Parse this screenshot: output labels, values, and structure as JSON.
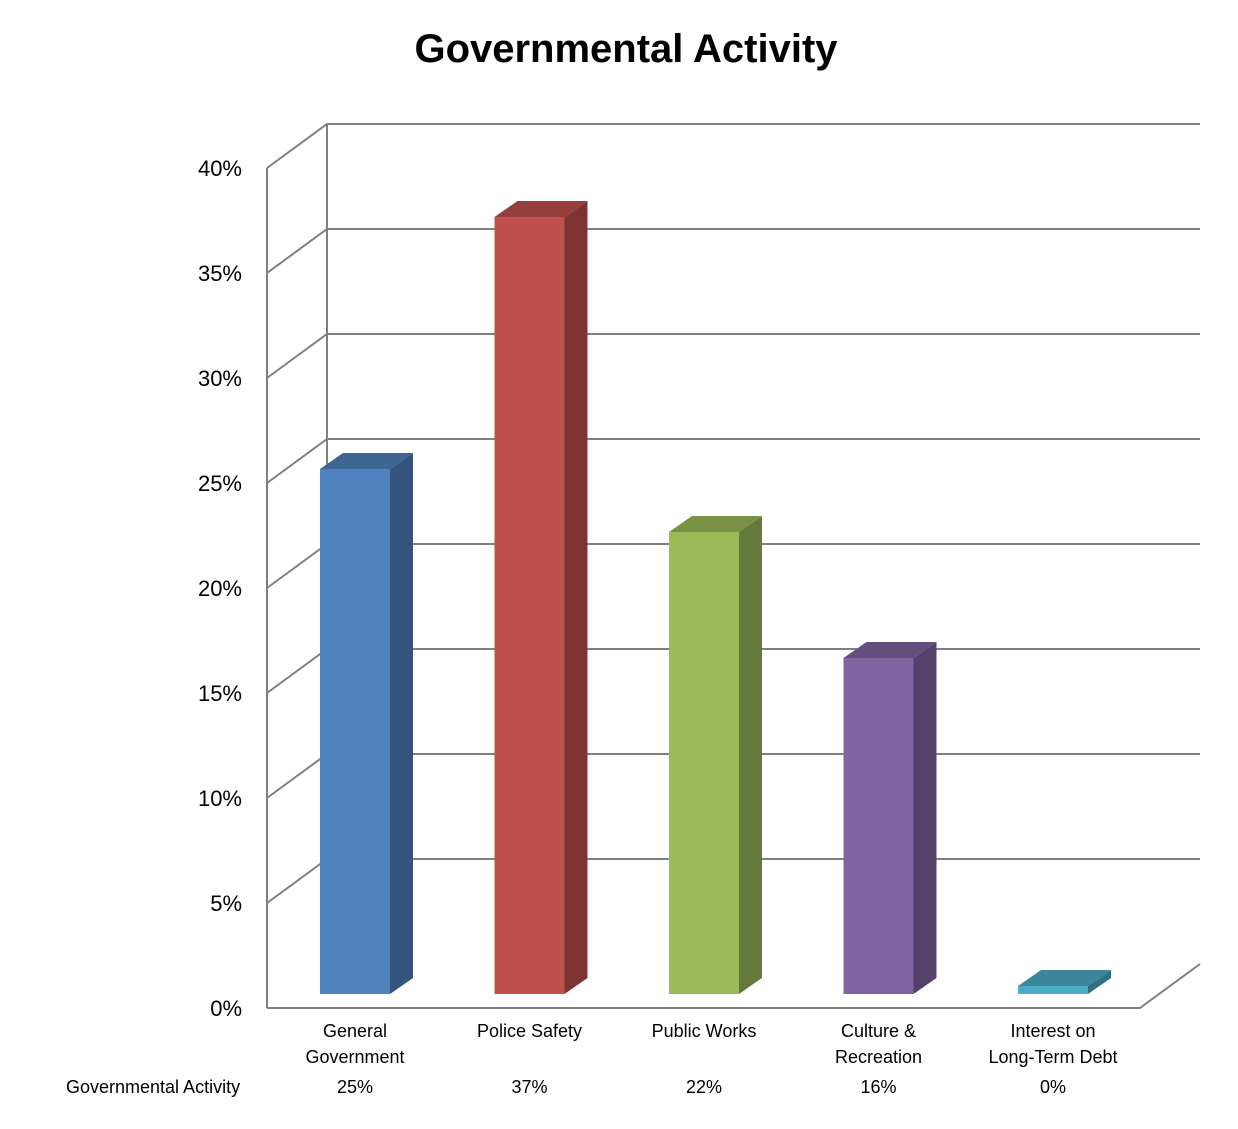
{
  "chart_data": {
    "type": "bar",
    "title": "Governmental Activity",
    "categories": [
      [
        "General",
        "Government"
      ],
      [
        "Police Safety"
      ],
      [
        "Public Works"
      ],
      [
        "Culture &",
        "Recreation"
      ],
      [
        "Interest on",
        "Long-Term Debt"
      ]
    ],
    "series": [
      {
        "name": "Governmental Activity",
        "values": [
          0.25,
          0.37,
          0.22,
          0.16,
          0.0
        ],
        "labels": [
          "25%",
          "37%",
          "22%",
          "16%",
          "0%"
        ]
      }
    ],
    "colors": [
      "#4f81bd",
      "#c0504d",
      "#9bbb59",
      "#8064a2",
      "#4bacc6"
    ],
    "ylim": [
      0,
      0.4
    ],
    "yticks": [
      "0%",
      "5%",
      "10%",
      "15%",
      "20%",
      "25%",
      "30%",
      "35%",
      "40%"
    ],
    "grid": true,
    "style": "3d-clustered-column",
    "data_table": true
  }
}
